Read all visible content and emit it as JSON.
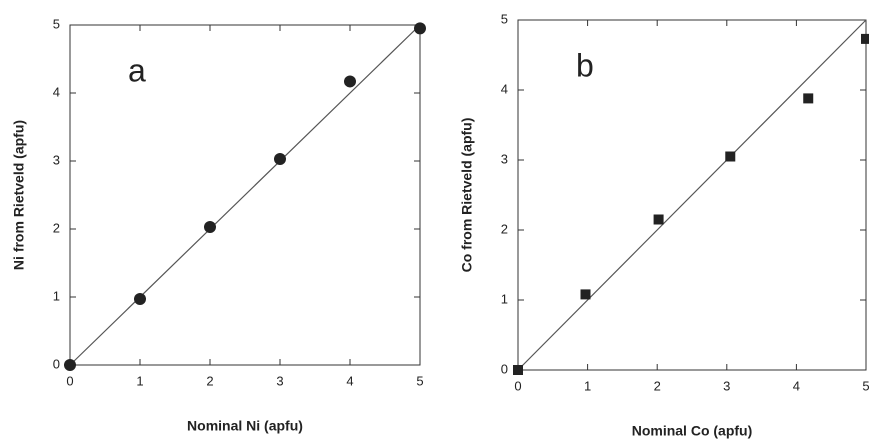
{
  "chart_data": [
    {
      "type": "scatter",
      "panel_label": "a",
      "x_label": "Nominal Ni (apfu)",
      "y_label": "Ni from Rietveld (apfu)",
      "marker": "circle",
      "color": "#222222",
      "reference_line": true,
      "x": [
        0,
        1,
        2,
        3,
        4,
        5
      ],
      "values": [
        0,
        0.97,
        2.03,
        3.03,
        4.17,
        4.95
      ],
      "xlim": [
        0,
        5
      ],
      "ylim": [
        0,
        5
      ],
      "xticks": [
        0,
        1,
        2,
        3,
        4,
        5
      ],
      "yticks": [
        0,
        1,
        2,
        3,
        4,
        5
      ]
    },
    {
      "type": "scatter",
      "panel_label": "b",
      "x_label": "Nominal Co (apfu)",
      "y_label": "Co from Rietveld (apfu)",
      "marker": "square",
      "color": "#222222",
      "reference_line": true,
      "x": [
        0,
        0.97,
        2.02,
        3.05,
        4.17,
        5
      ],
      "values": [
        0,
        1.08,
        2.15,
        3.05,
        3.88,
        4.73
      ],
      "xlim": [
        0,
        5
      ],
      "ylim": [
        0,
        5
      ],
      "xticks": [
        0,
        1,
        2,
        3,
        4,
        5
      ],
      "yticks": [
        0,
        1,
        2,
        3,
        4,
        5
      ]
    }
  ]
}
